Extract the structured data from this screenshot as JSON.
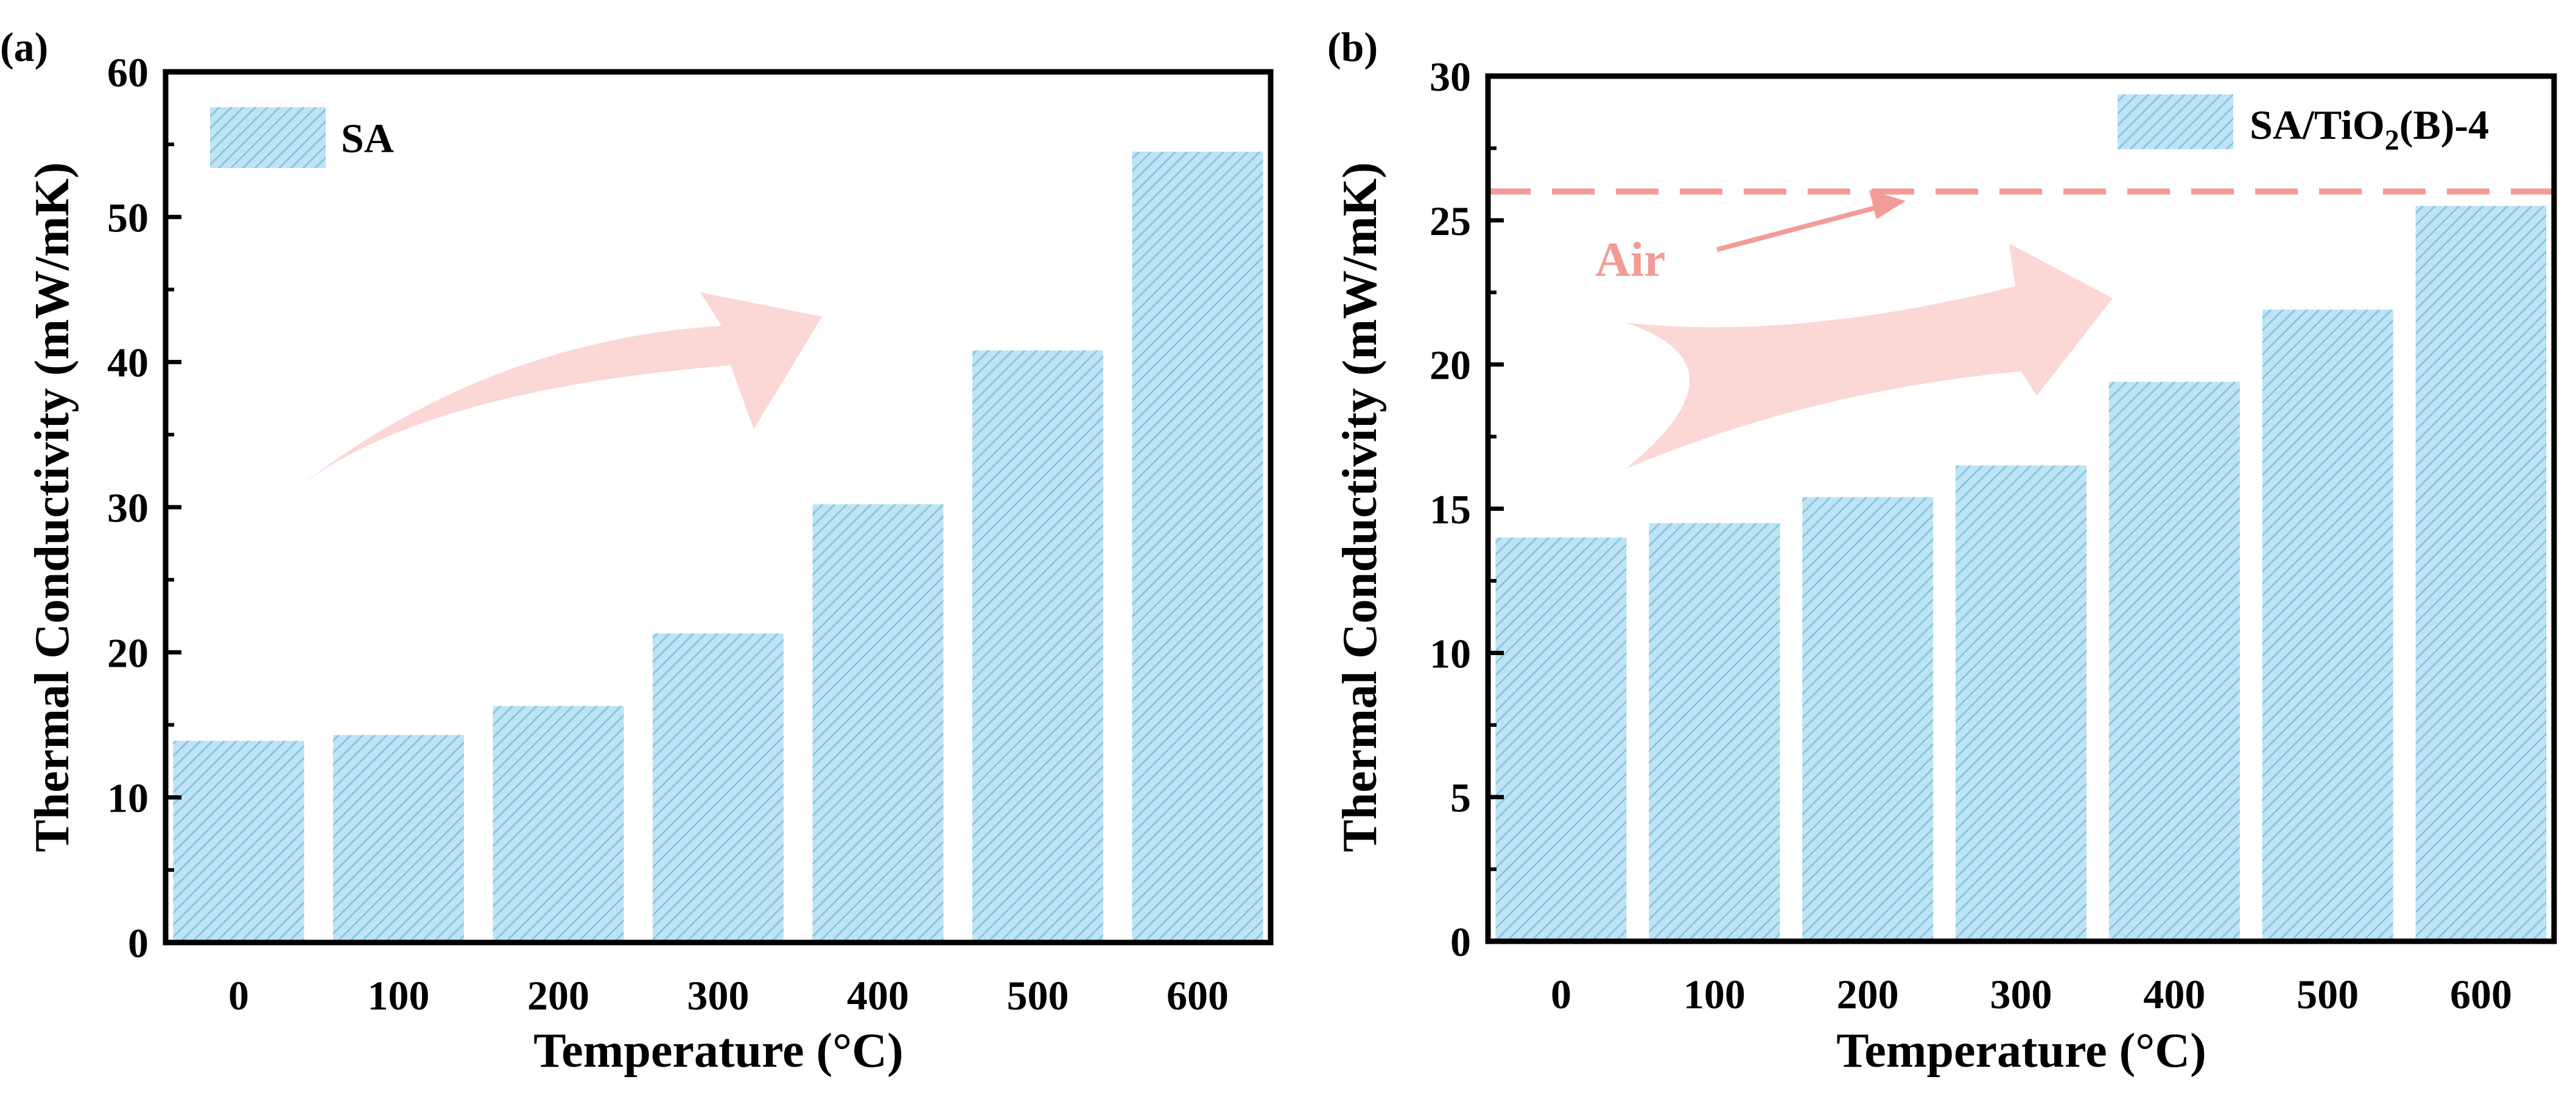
{
  "colors": {
    "bar_fill": "#bfe3f3",
    "bar_hatch": "#7cc3e4",
    "arrow": "#fbd3d0",
    "air_line": "#f39c97",
    "air_text": "#f39c97",
    "axis": "#000000"
  },
  "chart_data": [
    {
      "type": "bar",
      "panel_label": "(a)",
      "categories": [
        "0",
        "100",
        "200",
        "300",
        "400",
        "500",
        "600"
      ],
      "values": [
        13.9,
        14.3,
        16.3,
        21.3,
        30.2,
        40.8,
        54.5
      ],
      "ylim": [
        0,
        60
      ],
      "yticks": [
        0,
        10,
        20,
        30,
        40,
        50,
        60
      ],
      "xlabel": "Temperature (°C)",
      "ylabel": "Thermal Conductivity (mW/mK)",
      "legend": {
        "label": "SA",
        "position": "top-left"
      },
      "annotation_arrow": "trend-up"
    },
    {
      "type": "bar",
      "panel_label": "(b)",
      "categories": [
        "0",
        "100",
        "200",
        "300",
        "400",
        "500",
        "600"
      ],
      "values": [
        14.0,
        14.5,
        15.4,
        16.5,
        19.4,
        21.9,
        25.5
      ],
      "ylim": [
        0,
        30
      ],
      "yticks": [
        0,
        5,
        10,
        15,
        20,
        25,
        30
      ],
      "xlabel": "Temperature (°C)",
      "ylabel": "Thermal Conductivity (mW/mK)",
      "legend": {
        "label_prefix": "SA/TiO",
        "label_sub": "2",
        "label_suffix": "(B)-4",
        "position": "top-right"
      },
      "reference_line": {
        "label": "Air",
        "value": 26
      },
      "annotation_arrow": "trend-up"
    }
  ]
}
